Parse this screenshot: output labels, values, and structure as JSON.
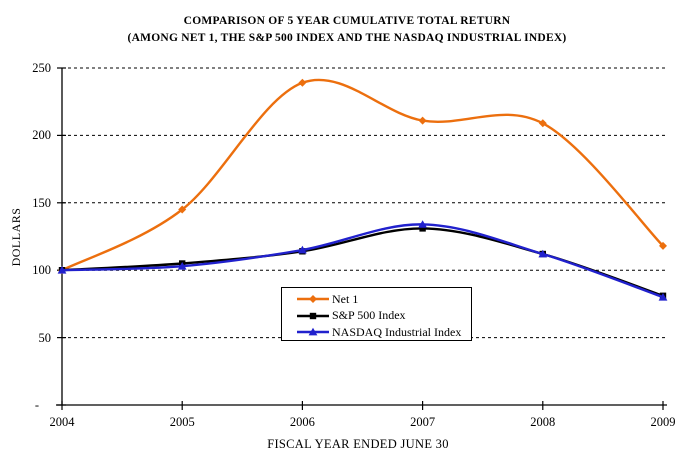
{
  "title": {
    "line1": "COMPARISON OF 5 YEAR CUMULATIVE TOTAL RETURN",
    "line2": "(AMONG NET 1, THE S&P 500 INDEX AND THE NASDAQ INDUSTRIAL INDEX)"
  },
  "chart_data": {
    "type": "line",
    "categories": [
      "2004",
      "2005",
      "2006",
      "2007",
      "2008",
      "2009"
    ],
    "series": [
      {
        "name": "Net 1",
        "color": "#ec6f0e",
        "marker": "diamond",
        "values": [
          100,
          145,
          239,
          211,
          209,
          118
        ]
      },
      {
        "name": "S&P 500 Index",
        "color": "#000000",
        "marker": "square",
        "values": [
          100,
          105,
          114,
          131,
          112,
          81
        ]
      },
      {
        "name": "NASDAQ Industrial Index",
        "color": "#2121cd",
        "marker": "triangle",
        "values": [
          100,
          103,
          115,
          134,
          112,
          80
        ]
      }
    ],
    "xlabel": "FISCAL YEAR ENDED JUNE 30",
    "ylabel": "DOLLARS",
    "ylim": [
      0,
      250
    ],
    "y_ticks": [
      {
        "value": 0,
        "label": "-"
      },
      {
        "value": 50,
        "label": "50"
      },
      {
        "value": 100,
        "label": "100"
      },
      {
        "value": 150,
        "label": "150"
      },
      {
        "value": 200,
        "label": "200"
      },
      {
        "value": 250,
        "label": "250"
      }
    ],
    "grid": "dashed-horizontal",
    "legend_position": "inside-bottom-center",
    "smoothing": true
  }
}
